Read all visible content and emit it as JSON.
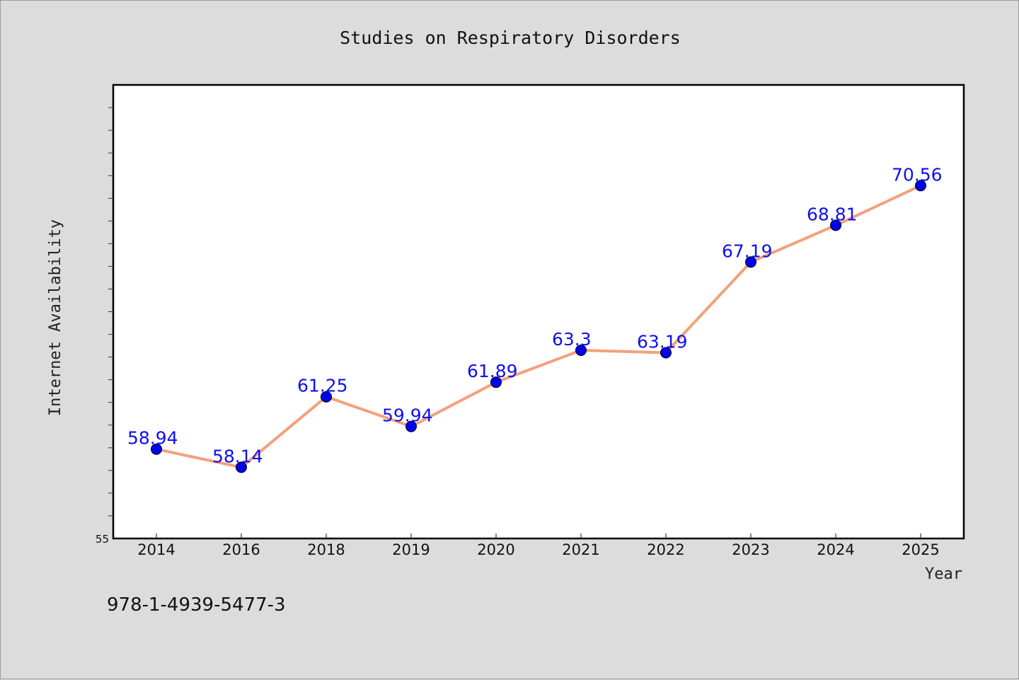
{
  "chart_data": {
    "type": "line",
    "title": "Studies on Respiratory Disorders",
    "xlabel": "Year",
    "ylabel": "Internet Availability",
    "categories": [
      "2014",
      "2016",
      "2018",
      "2019",
      "2020",
      "2021",
      "2022",
      "2023",
      "2024",
      "2025"
    ],
    "values": [
      58.94,
      58.14,
      61.25,
      59.94,
      61.89,
      63.3,
      63.19,
      67.19,
      68.81,
      70.56
    ],
    "data_labels": [
      "58.94",
      "58.14",
      "61.25",
      "59.94",
      "61.89",
      "63.3",
      "63.19",
      "67.19",
      "68.81",
      "70.56"
    ],
    "ylim": [
      55,
      75
    ],
    "y_tick_labels": [
      "55"
    ],
    "grid": false,
    "legend": "none",
    "colors": {
      "line": "#f4a07c",
      "marker": "#0000ee",
      "label": "#1010ee",
      "plot_bg": "#ffffff",
      "page_bg": "#dcdcdc"
    }
  },
  "footer": {
    "isbn": "978-1-4939-5477-3"
  }
}
